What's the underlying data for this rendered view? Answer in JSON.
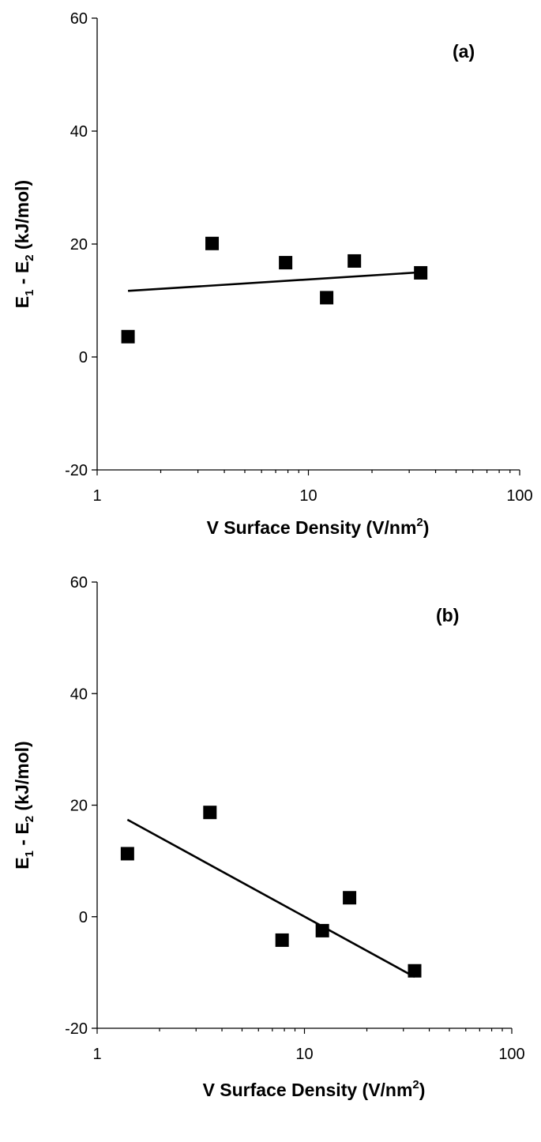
{
  "chart_data": [
    {
      "type": "scatter",
      "panel_label": "(a)",
      "xlabel": {
        "prefix": "V Surface Density (V/nm",
        "sup": "2",
        "suffix": ")"
      },
      "ylabel": {
        "a": "E",
        "a_sub": "1",
        "mid": " - E",
        "b_sub": "2",
        "suffix": " (kJ/mol)"
      },
      "xscale": "log",
      "xlim": [
        1,
        100
      ],
      "ylim": [
        -20,
        60
      ],
      "xticks": [
        1,
        10,
        100
      ],
      "xtick_labels": [
        "1",
        "10",
        "100"
      ],
      "yticks": [
        -20,
        0,
        20,
        40,
        60
      ],
      "ytick_labels": [
        "-20",
        "0",
        "20",
        "40",
        "60"
      ],
      "grid": false,
      "points": [
        {
          "x": 1.4,
          "y": 3.6
        },
        {
          "x": 3.5,
          "y": 20.1
        },
        {
          "x": 7.8,
          "y": 16.7
        },
        {
          "x": 12.2,
          "y": 10.5
        },
        {
          "x": 16.5,
          "y": 17.0
        },
        {
          "x": 34.0,
          "y": 14.9
        }
      ],
      "trendline": [
        {
          "x": 1.4,
          "y": 11.7
        },
        {
          "x": 34.0,
          "y": 15.0
        }
      ]
    },
    {
      "type": "scatter",
      "panel_label": "(b)",
      "xlabel": {
        "prefix": "V Surface Density (V/nm",
        "sup": "2",
        "suffix": ")"
      },
      "ylabel": {
        "a": "E",
        "a_sub": "1",
        "mid": " - E",
        "b_sub": "2",
        "suffix": " (kJ/mol)"
      },
      "xscale": "log",
      "xlim": [
        1,
        100
      ],
      "ylim": [
        -20,
        60
      ],
      "xticks": [
        1,
        10,
        100
      ],
      "xtick_labels": [
        "1",
        "10",
        "100"
      ],
      "yticks": [
        -20,
        0,
        20,
        40,
        60
      ],
      "ytick_labels": [
        "-20",
        "0",
        "20",
        "40",
        "60"
      ],
      "grid": false,
      "points": [
        {
          "x": 1.4,
          "y": 11.3
        },
        {
          "x": 3.5,
          "y": 18.7
        },
        {
          "x": 7.8,
          "y": -4.2
        },
        {
          "x": 12.2,
          "y": -2.5
        },
        {
          "x": 16.5,
          "y": 3.4
        },
        {
          "x": 34.0,
          "y": -9.7
        }
      ],
      "trendline": [
        {
          "x": 1.4,
          "y": 17.4
        },
        {
          "x": 34.0,
          "y": -10.8
        }
      ]
    }
  ]
}
